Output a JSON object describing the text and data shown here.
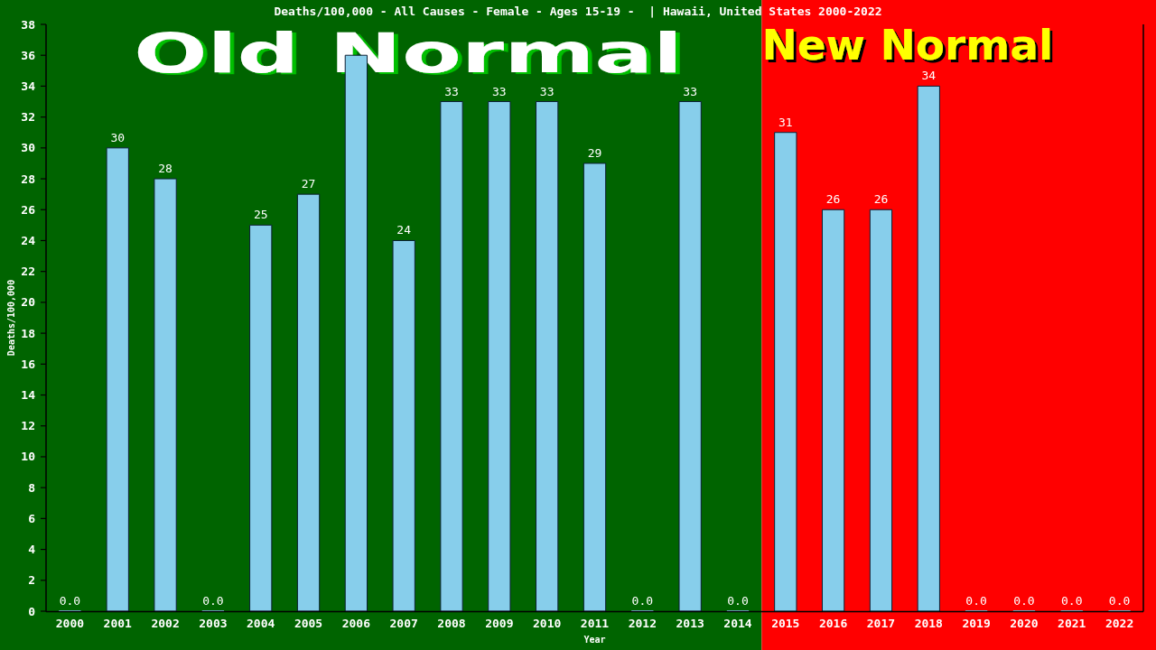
{
  "chart_data": {
    "type": "bar",
    "title": "Deaths/100,000 - All Causes - Female - Ages 15-19 -  | Hawaii, United States 2000-2022",
    "xlabel": "Year",
    "ylabel": "Deaths/100,000",
    "categories": [
      "2000",
      "2001",
      "2002",
      "2003",
      "2004",
      "2005",
      "2006",
      "2007",
      "2008",
      "2009",
      "2010",
      "2011",
      "2012",
      "2013",
      "2014",
      "2015",
      "2016",
      "2017",
      "2018",
      "2019",
      "2020",
      "2021",
      "2022"
    ],
    "values": [
      0,
      30,
      28,
      0,
      25,
      27,
      36,
      24,
      33,
      33,
      33,
      29,
      0,
      33,
      0,
      31,
      26,
      26,
      34,
      0,
      0,
      0,
      0
    ],
    "value_labels": [
      "0.0",
      "30",
      "28",
      "0.0",
      "25",
      "27",
      null,
      "24",
      "33",
      "33",
      "33",
      "29",
      "0.0",
      "33",
      "0.0",
      "31",
      "26",
      "26",
      "34",
      "0.0",
      "0.0",
      "0.0",
      "0.0"
    ],
    "color": "#87ceeb",
    "ylim": [
      0,
      38
    ],
    "yticks": [
      0,
      2,
      4,
      6,
      8,
      10,
      12,
      14,
      16,
      18,
      20,
      22,
      24,
      26,
      28,
      30,
      32,
      34,
      36,
      38
    ],
    "bands": [
      {
        "axis": "x",
        "from": "2000",
        "to": "2014",
        "label": "Old Normal",
        "color": "#006400"
      },
      {
        "axis": "x",
        "from": "2015",
        "to": "2022",
        "label": "New Normal",
        "color": "#ff0000"
      }
    ]
  }
}
